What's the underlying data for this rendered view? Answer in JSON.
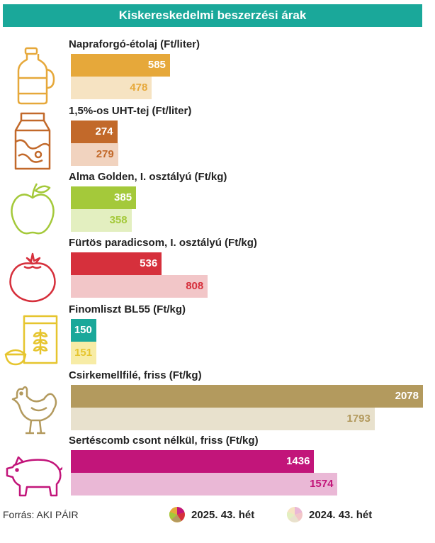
{
  "title": "Kiskereskedelmi beszerzési árak",
  "source": "Forrás: AKI PÁIR",
  "legend": {
    "current": "2025. 43. hét",
    "previous": "2024. 43. hét"
  },
  "chart_data": {
    "type": "bar",
    "orientation": "horizontal",
    "title": "Kiskereskedelmi beszerzési árak",
    "categories": [
      "Napraforgó-étolaj (Ft/liter)",
      "1,5%-os UHT-tej (Ft/liter)",
      "Alma Golden, I. osztályú (Ft/kg)",
      "Fürtös paradicsom, I. osztályú (Ft/kg)",
      "Finomliszt BL55 (Ft/kg)",
      "Csirkemellfilé, friss (Ft/kg)",
      "Sertéscomb csont nélkül, friss (Ft/kg)"
    ],
    "series": [
      {
        "name": "2025. 43. hét",
        "values": [
          585,
          274,
          385,
          536,
          150,
          2078,
          1436
        ]
      },
      {
        "name": "2024. 43. hét",
        "values": [
          478,
          279,
          358,
          808,
          151,
          1793,
          1574
        ]
      }
    ],
    "xlim": [
      0,
      2078
    ],
    "grid": false,
    "legend_position": "bottom",
    "colors": {
      "current": [
        "#e6a83a",
        "#c2692a",
        "#a4c93a",
        "#d6303c",
        "#1aa89a",
        "#b39a5e",
        "#c2157a"
      ],
      "previous": [
        "#f6e3c2",
        "#f1d3bf",
        "#e3efc0",
        "#f2c6c8",
        "#f7eca6",
        "#e8e1cd",
        "#eab8d6"
      ],
      "previous_text": [
        "#e6a83a",
        "#c2692a",
        "#a4c93a",
        "#d6303c",
        "#e6c52e",
        "#b39a5e",
        "#c2157a"
      ]
    },
    "icons": [
      "oil-bottle-icon",
      "milk-carton-icon",
      "apple-icon",
      "tomato-icon",
      "flour-bag-icon",
      "chicken-icon",
      "pig-icon"
    ]
  }
}
